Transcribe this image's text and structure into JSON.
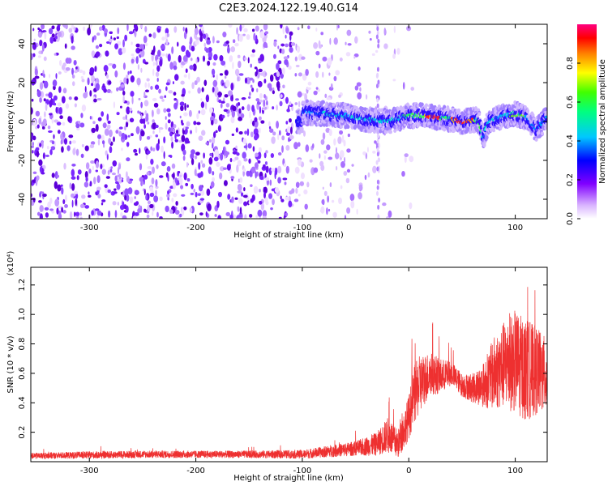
{
  "title": "C2E3.2024.122.19.40.G14",
  "chart_data": [
    {
      "type": "heatmap",
      "xlabel": "Height of straight line (km)",
      "ylabel": "Frequency (Hz)",
      "xlim": [
        -355,
        130
      ],
      "ylim": [
        -50,
        50
      ],
      "xticks": [
        -300,
        -200,
        -100,
        0,
        100
      ],
      "yticks": [
        -40,
        -20,
        0,
        20,
        40
      ],
      "colorbar": {
        "label": "Normalized spectral amplitude",
        "range": [
          0,
          1
        ],
        "ticks": [
          0.0,
          0.2,
          0.4,
          0.6,
          0.8
        ],
        "colormap": [
          "#ffffff",
          "#8000ff",
          "#0000ff",
          "#00ffff",
          "#00ff00",
          "#ffff00",
          "#ff0000",
          "#ff0080"
        ]
      },
      "signal_trace": {
        "x": [
          -100,
          -80,
          -60,
          -40,
          -20,
          0,
          10,
          30,
          50,
          65,
          70,
          75,
          90,
          100,
          110,
          120,
          130
        ],
        "freq": [
          5,
          4,
          3,
          1,
          0,
          3,
          3,
          2,
          0,
          1,
          -8,
          0,
          3,
          4,
          2,
          -4,
          2
        ]
      },
      "noise_region_x": [
        -355,
        -30
      ]
    },
    {
      "type": "line",
      "xlabel": "Height of straight line (km)",
      "ylabel": "SNR (10 * v/v)",
      "y_multiplier": "(x10⁴)",
      "xlim": [
        -355,
        130
      ],
      "ylim": [
        0,
        1.32
      ],
      "xticks": [
        -300,
        -200,
        -100,
        0,
        100
      ],
      "yticks": [
        0.2,
        0.4,
        0.6,
        0.8,
        1.0,
        1.2
      ],
      "series": [
        {
          "color": "#ee3030",
          "x": [
            -355,
            -300,
            -250,
            -200,
            -150,
            -100,
            -75,
            -50,
            -30,
            -20,
            -10,
            0,
            5,
            10,
            20,
            30,
            40,
            50,
            60,
            70,
            80,
            90,
            100,
            110,
            120,
            130
          ],
          "y": [
            0.04,
            0.045,
            0.05,
            0.05,
            0.05,
            0.05,
            0.07,
            0.09,
            0.12,
            0.18,
            0.12,
            0.3,
            0.45,
            0.52,
            0.6,
            0.58,
            0.6,
            0.52,
            0.5,
            0.52,
            0.6,
            0.66,
            0.68,
            0.62,
            0.62,
            0.58
          ],
          "noise_amplitude": [
            0.02,
            0.025,
            0.025,
            0.025,
            0.025,
            0.03,
            0.04,
            0.05,
            0.08,
            0.12,
            0.1,
            0.15,
            0.2,
            0.2,
            0.15,
            0.12,
            0.08,
            0.08,
            0.1,
            0.15,
            0.25,
            0.3,
            0.35,
            0.35,
            0.3,
            0.25
          ]
        }
      ]
    }
  ]
}
